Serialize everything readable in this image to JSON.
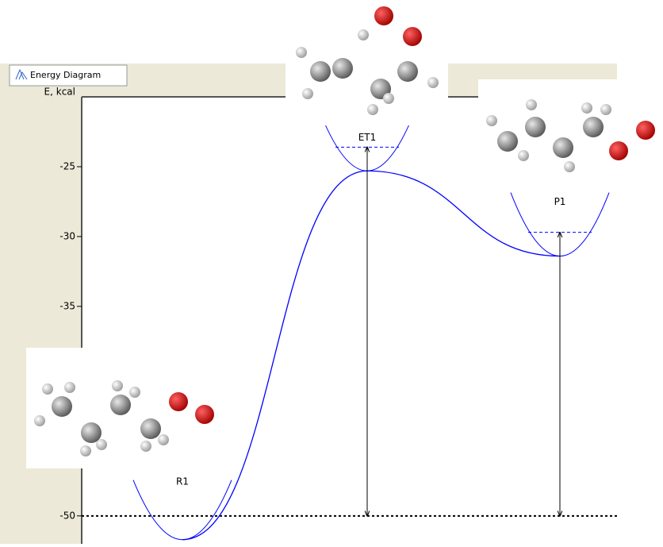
{
  "window": {
    "tab": "Energy Diagram"
  },
  "chart_data": {
    "type": "energy-diagram",
    "y_label": "E, kcal",
    "categories": [
      "R1",
      "ET1",
      "P1"
    ],
    "values": [
      -51.7,
      -25.3,
      -31.4
    ],
    "levels": [
      -50,
      -23.6,
      -29.7
    ],
    "color": "#0000ff",
    "ylim": [
      -52,
      -20
    ],
    "yticks": [
      -50,
      -35,
      -30,
      -25
    ]
  }
}
